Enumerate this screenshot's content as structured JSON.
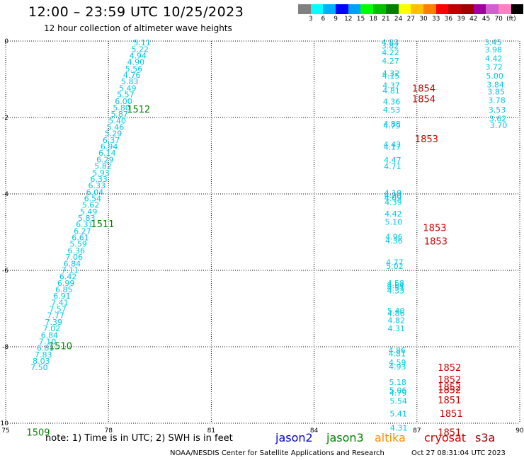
{
  "header": {
    "title": "12:00 – 23:59 UTC 10/25/2023",
    "subtitle": "12 hour collection of altimeter wave heights"
  },
  "color_scale": {
    "colors": [
      "#808080",
      "#00ffff",
      "#00b0ff",
      "#0000ff",
      "#00a0ff",
      "#00ff00",
      "#00c000",
      "#008000",
      "#ffff00",
      "#ffc000",
      "#ff8000",
      "#ff0000",
      "#c00000",
      "#a00000",
      "#a000a0",
      "#d060d0",
      "#ff80c0",
      "#000000"
    ],
    "labels": [
      "3",
      "6",
      "9",
      "12",
      "15",
      "18",
      "21",
      "24",
      "27",
      "30",
      "33",
      "36",
      "39",
      "42",
      "45",
      "70",
      "(ft)"
    ]
  },
  "footer": {
    "note": "note: 1) Time is in UTC; 2) SWH is in feet",
    "missions": [
      {
        "name": "jason2",
        "color": "#0000cc"
      },
      {
        "name": "jason3",
        "color": "#008000"
      },
      {
        "name": "altika",
        "color": "#ff8c00"
      },
      {
        "name": "cryosat",
        "color": "#cc0000"
      },
      {
        "name": "s3a",
        "color": "#990000"
      }
    ],
    "credit": "NOAA/NESDIS Center for Satellite Applications and Research",
    "timestamp": "Oct 27 08:31:04 UTC 2023"
  },
  "chart_data": {
    "type": "scatter",
    "xlim": [
      75,
      90
    ],
    "ylim": [
      -10,
      0
    ],
    "x_ticks": [
      "75",
      "78",
      "81",
      "84",
      "87",
      "90"
    ],
    "y_ticks": [
      "0",
      "-2",
      "-4",
      "-6",
      "-8",
      "-10"
    ],
    "grid": true,
    "point_color": "#00c8e0",
    "series": [
      {
        "points": [
          [
            78.98,
            -0.04,
            "5.11"
          ],
          [
            78.92,
            -0.21,
            "5.22"
          ],
          [
            78.86,
            -0.38,
            "4.94"
          ],
          [
            78.8,
            -0.55,
            "4.90"
          ],
          [
            78.74,
            -0.72,
            "5.56"
          ],
          [
            78.68,
            -0.89,
            "4.76"
          ],
          [
            78.62,
            -1.06,
            "5.83"
          ],
          [
            78.56,
            -1.23,
            "5.49"
          ],
          [
            78.5,
            -1.4,
            "5.57"
          ],
          [
            78.44,
            -1.57,
            "6.00"
          ],
          [
            78.38,
            -1.74,
            "5.80"
          ],
          [
            78.32,
            -1.91,
            "5.87"
          ],
          [
            78.26,
            -2.08,
            "5.40"
          ],
          [
            78.2,
            -2.25,
            "5.46"
          ],
          [
            78.14,
            -2.42,
            "5.29"
          ],
          [
            78.08,
            -2.59,
            "6.37"
          ],
          [
            78.02,
            -2.76,
            "6.94"
          ],
          [
            77.96,
            -2.93,
            "6.14"
          ],
          [
            77.9,
            -3.1,
            "6.29"
          ],
          [
            77.84,
            -3.27,
            "5.82"
          ],
          [
            77.78,
            -3.44,
            "5.93"
          ],
          [
            77.72,
            -3.61,
            "6.33"
          ],
          [
            77.66,
            -3.78,
            "6.33"
          ],
          [
            77.6,
            -3.95,
            "6.04"
          ],
          [
            77.54,
            -4.12,
            "6.54"
          ],
          [
            77.48,
            -4.29,
            "5.62"
          ],
          [
            77.42,
            -4.46,
            "5.49"
          ],
          [
            77.36,
            -4.63,
            "5.83"
          ],
          [
            77.3,
            -4.8,
            "6.31"
          ],
          [
            77.24,
            -4.97,
            "6.27"
          ],
          [
            77.18,
            -5.14,
            "6.61"
          ],
          [
            77.12,
            -5.31,
            "5.59"
          ],
          [
            77.06,
            -5.48,
            "6.36"
          ],
          [
            77.0,
            -5.65,
            "7.06"
          ],
          [
            76.94,
            -5.82,
            "6.84"
          ],
          [
            76.88,
            -5.99,
            "7.11"
          ],
          [
            76.82,
            -6.16,
            "6.42"
          ],
          [
            76.76,
            -6.33,
            "6.99"
          ],
          [
            76.7,
            -6.5,
            "6.85"
          ],
          [
            76.64,
            -6.67,
            "6.91"
          ],
          [
            76.58,
            -6.84,
            "7.41"
          ],
          [
            76.52,
            -7.01,
            "7.57"
          ],
          [
            76.46,
            -7.18,
            "7.77"
          ],
          [
            76.4,
            -7.35,
            "7.39"
          ],
          [
            76.34,
            -7.52,
            "7.02"
          ],
          [
            76.28,
            -7.69,
            "6.84"
          ],
          [
            76.22,
            -7.86,
            "7.10"
          ],
          [
            76.16,
            -8.03,
            "6.81"
          ],
          [
            76.1,
            -8.2,
            "7.83"
          ],
          [
            76.04,
            -8.37,
            "8.03"
          ],
          [
            75.98,
            -8.54,
            "7.50"
          ],
          [
            86.22,
            -0.03,
            "4.83"
          ],
          [
            86.22,
            -0.12,
            "3.82"
          ],
          [
            86.23,
            -0.3,
            "4.22"
          ],
          [
            86.23,
            -0.52,
            "4.27"
          ],
          [
            86.24,
            -0.84,
            "4.32"
          ],
          [
            86.24,
            -0.91,
            "4.15"
          ],
          [
            86.25,
            -1.16,
            "4.37"
          ],
          [
            86.25,
            -1.3,
            "4.81"
          ],
          [
            86.26,
            -1.58,
            "4.36"
          ],
          [
            86.26,
            -1.8,
            "4.53"
          ],
          [
            86.27,
            -2.17,
            "4.88"
          ],
          [
            86.27,
            -2.21,
            "4.79"
          ],
          [
            86.28,
            -2.7,
            "4.43"
          ],
          [
            86.28,
            -2.77,
            "4.17"
          ],
          [
            86.29,
            -3.11,
            "4.47"
          ],
          [
            86.29,
            -3.28,
            "4.71"
          ],
          [
            86.3,
            -3.97,
            "4.19"
          ],
          [
            86.3,
            -4.04,
            "4.20"
          ],
          [
            86.3,
            -4.1,
            "4.09"
          ],
          [
            86.31,
            -4.21,
            "4.39"
          ],
          [
            86.31,
            -4.52,
            "4.42"
          ],
          [
            86.32,
            -4.73,
            "5.10"
          ],
          [
            86.33,
            -5.12,
            "4.96"
          ],
          [
            86.33,
            -5.22,
            "4.36"
          ],
          [
            86.35,
            -5.79,
            "4.77"
          ],
          [
            86.35,
            -5.89,
            "5.02"
          ],
          [
            86.38,
            -6.33,
            "4.58"
          ],
          [
            86.38,
            -6.39,
            "4.54"
          ],
          [
            86.38,
            -6.45,
            "4.51"
          ],
          [
            86.38,
            -6.53,
            "4.33"
          ],
          [
            86.39,
            -7.06,
            "5.40"
          ],
          [
            86.39,
            -7.12,
            "4.86"
          ],
          [
            86.4,
            -7.31,
            "4.82"
          ],
          [
            86.4,
            -7.52,
            "4.31"
          ],
          [
            86.42,
            -8.09,
            "4.86"
          ],
          [
            86.42,
            -8.18,
            "4.81"
          ],
          [
            86.43,
            -8.41,
            "4.59"
          ],
          [
            86.43,
            -8.52,
            "4.93"
          ],
          [
            86.44,
            -8.93,
            "5.18"
          ],
          [
            86.45,
            -9.14,
            "5.06"
          ],
          [
            86.45,
            -9.2,
            "4.79"
          ],
          [
            86.46,
            -9.42,
            "5.54"
          ],
          [
            86.46,
            -9.75,
            "5.41"
          ],
          [
            86.47,
            -10.12,
            "4.31"
          ],
          [
            89.22,
            -0.03,
            "3.45"
          ],
          [
            89.23,
            -0.22,
            "3.98"
          ],
          [
            89.24,
            -0.45,
            "4.42"
          ],
          [
            89.25,
            -0.68,
            "3.72"
          ],
          [
            89.27,
            -0.91,
            "5.00"
          ],
          [
            89.29,
            -1.14,
            "3.84"
          ],
          [
            89.31,
            -1.32,
            "3.85"
          ],
          [
            89.33,
            -1.55,
            "3.78"
          ],
          [
            89.34,
            -1.8,
            "3.53"
          ],
          [
            89.36,
            -2.03,
            "3.62"
          ],
          [
            89.38,
            -2.2,
            "3.70"
          ]
        ]
      }
    ],
    "annotations": [
      {
        "x": 78.88,
        "y": -1.78,
        "text": "1512",
        "color": "#008000"
      },
      {
        "x": 77.83,
        "y": -4.78,
        "text": "1511",
        "color": "#008000"
      },
      {
        "x": 76.6,
        "y": -7.97,
        "text": "1510",
        "color": "#008000"
      },
      {
        "x": 75.95,
        "y": -10.23,
        "text": "1509",
        "color": "#008000"
      },
      {
        "x": 87.2,
        "y": -1.23,
        "text": "1854",
        "color": "#cc0000"
      },
      {
        "x": 87.2,
        "y": -1.51,
        "text": "1854",
        "color": "#cc0000"
      },
      {
        "x": 87.28,
        "y": -2.56,
        "text": "1853",
        "color": "#cc0000"
      },
      {
        "x": 87.52,
        "y": -4.88,
        "text": "1853",
        "color": "#cc0000"
      },
      {
        "x": 87.55,
        "y": -5.23,
        "text": "1853",
        "color": "#cc0000"
      },
      {
        "x": 87.95,
        "y": -8.54,
        "text": "1852",
        "color": "#cc0000"
      },
      {
        "x": 87.95,
        "y": -8.85,
        "text": "1852",
        "color": "#cc0000"
      },
      {
        "x": 87.95,
        "y": -9.05,
        "text": "1852",
        "color": "#cc0000"
      },
      {
        "x": 87.95,
        "y": -9.12,
        "text": "1852",
        "color": "#cc0000"
      },
      {
        "x": 87.95,
        "y": -9.39,
        "text": "1851",
        "color": "#cc0000"
      },
      {
        "x": 88.0,
        "y": -9.74,
        "text": "1851",
        "color": "#cc0000"
      },
      {
        "x": 87.95,
        "y": -10.23,
        "text": "1851",
        "color": "#cc0000"
      }
    ]
  }
}
